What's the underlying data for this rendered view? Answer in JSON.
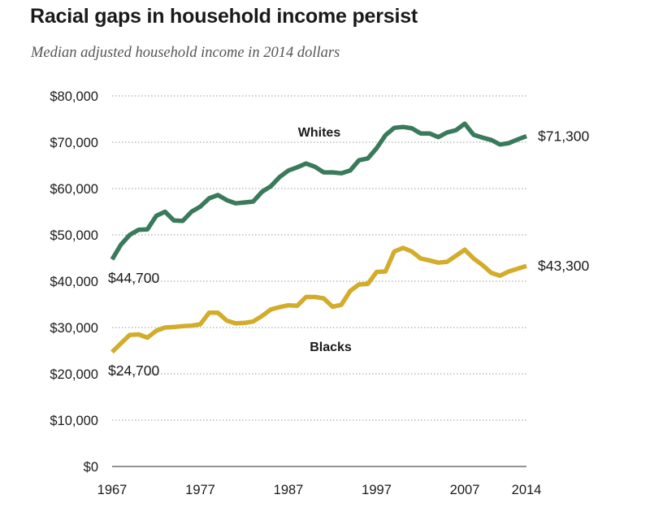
{
  "title": "Racial gaps in household income persist",
  "subtitle": "Median adjusted household income in 2014 dollars",
  "chart_data": {
    "type": "line",
    "title": "Racial gaps in household income persist",
    "subtitle": "Median adjusted household income in 2014 dollars",
    "xlim": [
      1967,
      2014
    ],
    "ylim": [
      0,
      80000
    ],
    "grid": true,
    "x_ticks": [
      {
        "value": 1967,
        "label": "1967"
      },
      {
        "value": 1977,
        "label": "1977"
      },
      {
        "value": 1987,
        "label": "1987"
      },
      {
        "value": 1997,
        "label": "1997"
      },
      {
        "value": 2007,
        "label": "2007"
      },
      {
        "value": 2014,
        "label": "2014"
      }
    ],
    "y_ticks": [
      {
        "value": 0,
        "label": "$0"
      },
      {
        "value": 10000,
        "label": "$10,000"
      },
      {
        "value": 20000,
        "label": "$20,000"
      },
      {
        "value": 30000,
        "label": "$30,000"
      },
      {
        "value": 40000,
        "label": "$40,000"
      },
      {
        "value": 50000,
        "label": "$50,000"
      },
      {
        "value": 60000,
        "label": "$60,000"
      },
      {
        "value": 70000,
        "label": "$70,000"
      },
      {
        "value": 80000,
        "label": "$80,000"
      }
    ],
    "series": [
      {
        "name": "Whites",
        "color": "#3a7a5c",
        "x": [
          1967,
          1968,
          1969,
          1970,
          1971,
          1972,
          1973,
          1974,
          1975,
          1976,
          1977,
          1978,
          1979,
          1980,
          1981,
          1982,
          1983,
          1984,
          1985,
          1986,
          1987,
          1988,
          1989,
          1990,
          1991,
          1992,
          1993,
          1994,
          1995,
          1996,
          1997,
          1998,
          1999,
          2000,
          2001,
          2002,
          2003,
          2004,
          2005,
          2006,
          2007,
          2008,
          2009,
          2010,
          2011,
          2012,
          2013,
          2014
        ],
        "values": [
          44700,
          47900,
          50000,
          51100,
          51200,
          54100,
          55000,
          53100,
          53000,
          55000,
          56100,
          57900,
          58600,
          57500,
          56800,
          57000,
          57200,
          59300,
          60500,
          62500,
          63900,
          64600,
          65400,
          64700,
          63500,
          63500,
          63300,
          63900,
          66100,
          66500,
          68700,
          71500,
          73100,
          73300,
          73000,
          71900,
          71900,
          71100,
          72100,
          72600,
          74000,
          71600,
          71000,
          70500,
          69500,
          69800,
          70600,
          71300
        ],
        "start_label": "$44,700",
        "end_label": "$71,300",
        "series_label": "Whites"
      },
      {
        "name": "Blacks",
        "color": "#d4ac2b",
        "x": [
          1967,
          1968,
          1969,
          1970,
          1971,
          1972,
          1973,
          1974,
          1975,
          1976,
          1977,
          1978,
          1979,
          1980,
          1981,
          1982,
          1983,
          1984,
          1985,
          1986,
          1987,
          1988,
          1989,
          1990,
          1991,
          1992,
          1993,
          1994,
          1995,
          1996,
          1997,
          1998,
          1999,
          2000,
          2001,
          2002,
          2003,
          2004,
          2005,
          2006,
          2007,
          2008,
          2009,
          2010,
          2011,
          2012,
          2013,
          2014
        ],
        "values": [
          24700,
          26600,
          28400,
          28500,
          27800,
          29300,
          30000,
          30100,
          30300,
          30400,
          30700,
          33200,
          33200,
          31500,
          30900,
          31000,
          31300,
          32500,
          33900,
          34400,
          34800,
          34700,
          36600,
          36600,
          36300,
          34500,
          34900,
          37900,
          39300,
          39400,
          42000,
          42100,
          46400,
          47200,
          46400,
          44900,
          44500,
          44000,
          44200,
          45500,
          46800,
          44900,
          43500,
          41800,
          41200,
          42100,
          42700,
          43300
        ],
        "start_label": "$24,700",
        "end_label": "$43,300",
        "series_label": "Blacks"
      }
    ]
  }
}
